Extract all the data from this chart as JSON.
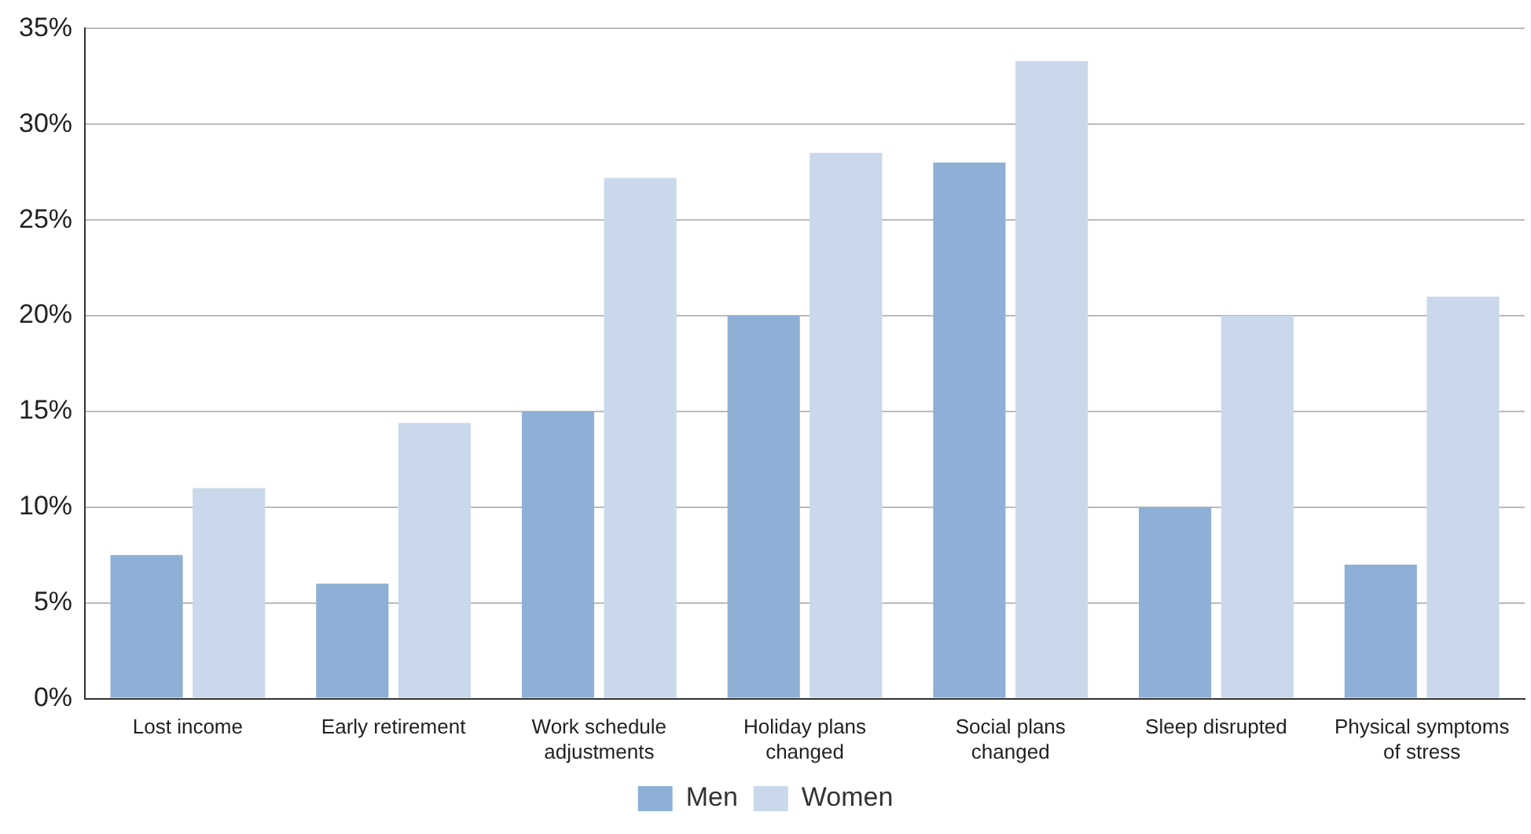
{
  "chart_data": {
    "type": "bar",
    "categories": [
      "Lost income",
      "Early retirement",
      "Work schedule\nadjustments",
      "Holiday plans\nchanged",
      "Social plans\nchanged",
      "Sleep disrupted",
      "Physical symptoms\nof stress"
    ],
    "series": [
      {
        "name": "Men",
        "color": "#8fb0d6",
        "values": [
          7.5,
          6,
          15,
          20,
          28,
          10,
          7
        ]
      },
      {
        "name": "Women",
        "color": "#c9d8ea",
        "values": [
          11,
          14.4,
          27.2,
          28.5,
          33.3,
          20,
          21
        ]
      }
    ],
    "ylim": [
      0,
      35
    ],
    "yticks": [
      {
        "value": 0,
        "label": "0%"
      },
      {
        "value": 5,
        "label": "5%"
      },
      {
        "value": 10,
        "label": "10%"
      },
      {
        "value": 15,
        "label": "15%"
      },
      {
        "value": 20,
        "label": "20%"
      },
      {
        "value": 25,
        "label": "25%"
      },
      {
        "value": 30,
        "label": "30%"
      },
      {
        "value": 35,
        "label": "35%"
      }
    ],
    "grid": "y",
    "legend": "bottom"
  }
}
